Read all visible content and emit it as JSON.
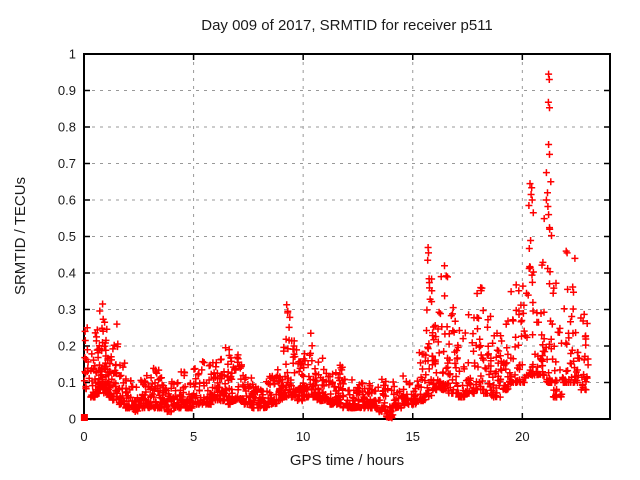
{
  "figure": {
    "background": "#ffffff",
    "text_color": "#1a1a1a"
  },
  "chart_data": {
    "type": "scatter",
    "title": "Day 009 of 2017, SRMTID for receiver p511",
    "xlabel": "GPS time / hours",
    "ylabel": "SRMTID / TECUs",
    "xlim": [
      0,
      24
    ],
    "ylim": [
      0,
      1
    ],
    "xticks": [
      0,
      5,
      10,
      15,
      20
    ],
    "xtick_labels": [
      "0",
      "5",
      "10",
      "15",
      "20"
    ],
    "yticks": [
      0,
      0.1,
      0.2,
      0.3,
      0.4,
      0.5,
      0.6,
      0.7,
      0.8,
      0.9,
      1
    ],
    "ytick_labels": [
      "0",
      "0.1",
      "0.2",
      "0.3",
      "0.4",
      "0.5",
      "0.6",
      "0.7",
      "0.8",
      "0.9",
      "1"
    ],
    "grid": true,
    "grid_style": "dotted",
    "legend": "none",
    "marker": "plus",
    "marker_color": "#ff0000",
    "grid_color": "#999999",
    "frame_color": "#000000",
    "series_name": "SRMTID",
    "x_data_range": [
      0,
      23.0
    ],
    "max_point": [
      21.2,
      0.945
    ],
    "origin_marker": {
      "shape": "filled-square",
      "x": 0.02,
      "y": 0.004
    },
    "density_bins": [
      [
        0.0,
        0.3,
        0.08,
        0.25,
        12
      ],
      [
        0.3,
        0.5,
        0.06,
        0.2,
        22
      ],
      [
        0.5,
        0.7,
        0.07,
        0.27,
        28
      ],
      [
        0.7,
        0.9,
        0.08,
        0.315,
        30
      ],
      [
        0.9,
        1.1,
        0.07,
        0.28,
        28
      ],
      [
        1.1,
        1.3,
        0.06,
        0.22,
        24
      ],
      [
        1.3,
        1.6,
        0.05,
        0.26,
        26
      ],
      [
        1.6,
        1.9,
        0.04,
        0.16,
        24
      ],
      [
        1.9,
        2.2,
        0.03,
        0.12,
        24
      ],
      [
        2.2,
        2.5,
        0.02,
        0.1,
        24
      ],
      [
        2.5,
        2.8,
        0.03,
        0.11,
        24
      ],
      [
        2.8,
        3.1,
        0.03,
        0.12,
        24
      ],
      [
        3.1,
        3.4,
        0.03,
        0.15,
        24
      ],
      [
        3.4,
        3.7,
        0.03,
        0.14,
        24
      ],
      [
        3.7,
        4.0,
        0.02,
        0.1,
        24
      ],
      [
        4.0,
        4.3,
        0.03,
        0.11,
        24
      ],
      [
        4.3,
        4.6,
        0.03,
        0.13,
        24
      ],
      [
        4.6,
        5.0,
        0.03,
        0.1,
        26
      ],
      [
        5.0,
        5.4,
        0.04,
        0.15,
        26
      ],
      [
        5.4,
        5.8,
        0.04,
        0.19,
        26
      ],
      [
        5.8,
        6.1,
        0.05,
        0.16,
        24
      ],
      [
        6.1,
        6.4,
        0.05,
        0.2,
        24
      ],
      [
        6.4,
        6.7,
        0.04,
        0.2,
        24
      ],
      [
        6.7,
        7.0,
        0.05,
        0.17,
        24
      ],
      [
        7.0,
        7.3,
        0.05,
        0.18,
        24
      ],
      [
        7.3,
        7.6,
        0.04,
        0.13,
        24
      ],
      [
        7.6,
        8.0,
        0.03,
        0.12,
        26
      ],
      [
        8.0,
        8.4,
        0.03,
        0.11,
        26
      ],
      [
        8.4,
        8.8,
        0.04,
        0.12,
        26
      ],
      [
        8.8,
        9.1,
        0.05,
        0.15,
        24
      ],
      [
        9.1,
        9.4,
        0.06,
        0.31,
        28
      ],
      [
        9.4,
        9.7,
        0.06,
        0.27,
        26
      ],
      [
        9.7,
        10.0,
        0.05,
        0.16,
        24
      ],
      [
        10.0,
        10.3,
        0.06,
        0.22,
        24
      ],
      [
        10.3,
        10.6,
        0.06,
        0.235,
        24
      ],
      [
        10.6,
        10.9,
        0.05,
        0.19,
        24
      ],
      [
        10.9,
        11.2,
        0.05,
        0.16,
        24
      ],
      [
        11.2,
        11.5,
        0.04,
        0.13,
        24
      ],
      [
        11.5,
        11.8,
        0.04,
        0.15,
        24
      ],
      [
        11.8,
        12.2,
        0.03,
        0.12,
        26
      ],
      [
        12.2,
        12.6,
        0.03,
        0.11,
        26
      ],
      [
        12.6,
        13.0,
        0.03,
        0.1,
        26
      ],
      [
        13.0,
        13.4,
        0.03,
        0.1,
        26
      ],
      [
        13.4,
        13.8,
        0.02,
        0.11,
        26
      ],
      [
        13.8,
        14.1,
        0.005,
        0.1,
        24
      ],
      [
        14.1,
        14.5,
        0.03,
        0.11,
        24
      ],
      [
        14.5,
        14.9,
        0.04,
        0.12,
        24
      ],
      [
        14.9,
        15.3,
        0.04,
        0.14,
        24
      ],
      [
        15.3,
        15.6,
        0.05,
        0.2,
        22
      ],
      [
        15.6,
        15.9,
        0.06,
        0.44,
        26
      ],
      [
        15.9,
        16.2,
        0.08,
        0.33,
        26
      ],
      [
        16.2,
        16.6,
        0.08,
        0.4,
        28
      ],
      [
        16.6,
        17.0,
        0.07,
        0.31,
        28
      ],
      [
        17.0,
        17.4,
        0.06,
        0.25,
        26
      ],
      [
        17.4,
        17.8,
        0.07,
        0.3,
        26
      ],
      [
        17.8,
        18.2,
        0.08,
        0.36,
        26
      ],
      [
        18.2,
        18.6,
        0.07,
        0.3,
        26
      ],
      [
        18.6,
        19.0,
        0.06,
        0.25,
        26
      ],
      [
        19.0,
        19.4,
        0.08,
        0.35,
        28
      ],
      [
        19.4,
        19.8,
        0.1,
        0.42,
        28
      ],
      [
        19.8,
        20.2,
        0.1,
        0.45,
        28
      ],
      [
        20.2,
        20.6,
        0.12,
        0.65,
        30
      ],
      [
        20.6,
        21.0,
        0.12,
        0.55,
        30
      ],
      [
        21.0,
        21.4,
        0.1,
        0.7,
        30
      ],
      [
        21.4,
        21.8,
        0.06,
        0.5,
        28
      ],
      [
        21.8,
        22.2,
        0.1,
        0.46,
        28
      ],
      [
        22.2,
        22.6,
        0.1,
        0.4,
        26
      ],
      [
        22.6,
        23.0,
        0.08,
        0.3,
        26
      ]
    ],
    "notable_points": [
      [
        0.02,
        0.105
      ],
      [
        0.05,
        0.24
      ],
      [
        0.06,
        0.215
      ],
      [
        0.04,
        0.13
      ],
      [
        0.85,
        0.315
      ],
      [
        1.5,
        0.26
      ],
      [
        9.25,
        0.313
      ],
      [
        9.3,
        0.295
      ],
      [
        10.35,
        0.235
      ],
      [
        13.9,
        0.004
      ],
      [
        14.05,
        0.003
      ],
      [
        15.7,
        0.47
      ],
      [
        15.72,
        0.455
      ],
      [
        15.68,
        0.435
      ],
      [
        16.45,
        0.42
      ],
      [
        16.3,
        0.39
      ],
      [
        18.1,
        0.36
      ],
      [
        20.35,
        0.645
      ],
      [
        20.4,
        0.615
      ],
      [
        20.45,
        0.6
      ],
      [
        20.3,
        0.585
      ],
      [
        20.5,
        0.565
      ],
      [
        21.1,
        0.675
      ],
      [
        21.3,
        0.65
      ],
      [
        21.15,
        0.62
      ],
      [
        21.1,
        0.6
      ],
      [
        21.2,
        0.56
      ],
      [
        21.25,
        0.52
      ],
      [
        21.2,
        0.945
      ],
      [
        21.23,
        0.93
      ],
      [
        21.19,
        0.868
      ],
      [
        21.24,
        0.853
      ],
      [
        21.2,
        0.752
      ],
      [
        21.24,
        0.725
      ],
      [
        22.0,
        0.46
      ],
      [
        22.4,
        0.44
      ]
    ]
  }
}
